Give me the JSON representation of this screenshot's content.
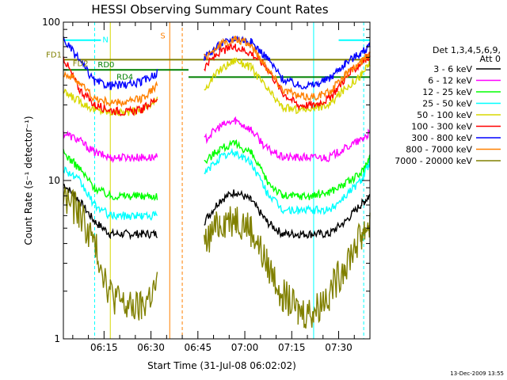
{
  "chart_data": {
    "type": "line",
    "title": "HESSI Observing Summary Count Rates",
    "xlabel": "Start Time (31-Jul-08 06:02:02)",
    "ylabel": "Count Rate (s⁻¹ detector⁻¹)",
    "yscale": "log",
    "ylim": [
      1,
      100
    ],
    "xlim": [
      "06:02",
      "07:40"
    ],
    "y_ticks": [
      "1",
      "10",
      "100"
    ],
    "x_ticks": [
      "06:15",
      "06:30",
      "06:45",
      "07:00",
      "07:15",
      "07:30"
    ],
    "grid": false,
    "legend": {
      "position": "right",
      "title": "Det 1,3,4,5,6,9,",
      "subtitle": "Att 0"
    },
    "timestamp": "13-Dec-2009 13:55",
    "x": [
      "06:02",
      "06:07",
      "06:12",
      "06:17",
      "06:22",
      "06:27",
      "06:32",
      "06:42",
      "06:47",
      "06:52",
      "06:57",
      "07:02",
      "07:07",
      "07:12",
      "07:17",
      "07:22",
      "07:27",
      "07:32",
      "07:37",
      "07:40"
    ],
    "series": [
      {
        "name": "3 - 6 keV",
        "color": "#000000",
        "values": [
          9.5,
          7.5,
          5.5,
          4.6,
          4.6,
          4.6,
          4.6,
          null,
          5.5,
          7.5,
          8.5,
          7.5,
          5.5,
          4.6,
          4.6,
          4.6,
          4.6,
          5.5,
          7,
          8
        ]
      },
      {
        "name": "6 - 12 keV",
        "color": "#ff00ff",
        "values": [
          20,
          18,
          15,
          14,
          14,
          14,
          14,
          null,
          18,
          22,
          24,
          21,
          16,
          14,
          14,
          14,
          14,
          16,
          18,
          20
        ]
      },
      {
        "name": "12 - 25 keV",
        "color": "#00ff00",
        "values": [
          15,
          12,
          9,
          8,
          8,
          8,
          8,
          null,
          13,
          16,
          17,
          15,
          10,
          8,
          8,
          8,
          8.5,
          9.5,
          11,
          14
        ]
      },
      {
        "name": "25 - 50 keV",
        "color": "#00ffff",
        "values": [
          12,
          10,
          7,
          6,
          6,
          6,
          6,
          null,
          11,
          14,
          15,
          13,
          8.5,
          6.5,
          6.5,
          6.5,
          6.5,
          8,
          10,
          13
        ]
      },
      {
        "name": "50 - 100 keV",
        "color": "#d8d800",
        "values": [
          36,
          32,
          28,
          27,
          27,
          28,
          32,
          null,
          38,
          50,
          58,
          52,
          38,
          29,
          28,
          29,
          30,
          38,
          46,
          55
        ]
      },
      {
        "name": "100 - 300 keV",
        "color": "#ff0000",
        "values": [
          60,
          38,
          30,
          28,
          27,
          28,
          33,
          null,
          52,
          65,
          70,
          64,
          52,
          36,
          30,
          30,
          33,
          44,
          55,
          62
        ]
      },
      {
        "name": "300 - 800 keV",
        "color": "#0000ff",
        "values": [
          78,
          58,
          42,
          40,
          40,
          42,
          48,
          null,
          60,
          72,
          80,
          75,
          60,
          44,
          40,
          40,
          44,
          55,
          64,
          70
        ]
      },
      {
        "name": "800 - 7000 keV",
        "color": "#ff8000",
        "values": [
          48,
          42,
          33,
          31,
          31,
          33,
          40,
          null,
          60,
          72,
          78,
          72,
          52,
          38,
          34,
          34,
          36,
          46,
          56,
          64
        ]
      },
      {
        "name": "7000 - 20000 keV",
        "color": "#808000",
        "values": [
          8,
          6.5,
          4,
          2,
          1.6,
          1.6,
          2.2,
          null,
          4,
          5.5,
          6,
          5,
          3,
          2,
          1.5,
          1.5,
          2,
          3,
          4.5,
          5.5
        ]
      }
    ],
    "annotations": [
      {
        "text": "FD1",
        "color": "#808000"
      },
      {
        "text": "FD2",
        "color": "#808000"
      },
      {
        "text": "N",
        "color": "#00ffff"
      },
      {
        "text": "S",
        "color": "#ff8000"
      },
      {
        "text": "RD0",
        "color": "#008000"
      },
      {
        "text": "RD4",
        "color": "#008000"
      }
    ]
  }
}
